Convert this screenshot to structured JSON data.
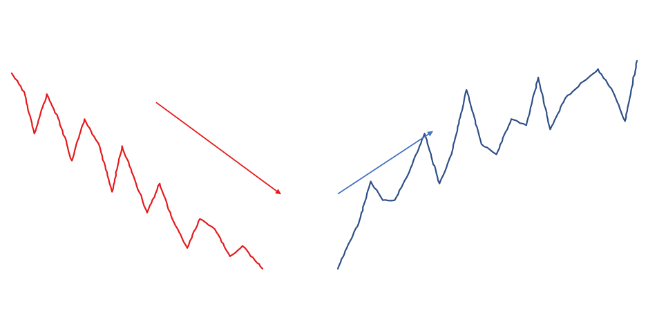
{
  "chart_data": [
    {
      "type": "line",
      "title": "",
      "xlabel": "",
      "ylabel": "",
      "grid": false,
      "legend": "none",
      "axes_visible": false,
      "xlim": [
        0,
        1
      ],
      "ylim": [
        0,
        1
      ],
      "series": [
        {
          "color": "#e41a1c",
          "x": [
            0.0,
            0.05,
            0.09,
            0.14,
            0.19,
            0.24,
            0.29,
            0.35,
            0.4,
            0.44,
            0.49,
            0.54,
            0.59,
            0.64,
            0.7,
            0.75,
            0.81,
            0.87,
            0.92,
            0.97,
            1.0
          ],
          "y": [
            0.94,
            0.85,
            0.65,
            0.84,
            0.71,
            0.52,
            0.72,
            0.59,
            0.37,
            0.59,
            0.43,
            0.27,
            0.41,
            0.24,
            0.1,
            0.24,
            0.19,
            0.06,
            0.11,
            0.04,
            0.0
          ]
        },
        {
          "color": "#e41a1c",
          "x": [
            0.0,
            1.0
          ],
          "y": [
            0.8,
            0.36
          ],
          "style": "arrow"
        }
      ]
    },
    {
      "type": "line",
      "title": "",
      "xlabel": "",
      "ylabel": "",
      "grid": false,
      "legend": "none",
      "axes_visible": false,
      "xlim": [
        0,
        1
      ],
      "ylim": [
        0,
        1
      ],
      "series": [
        {
          "color": "#2e4f86",
          "x": [
            0.0,
            0.03,
            0.07,
            0.11,
            0.15,
            0.19,
            0.24,
            0.29,
            0.34,
            0.38,
            0.43,
            0.48,
            0.53,
            0.58,
            0.63,
            0.67,
            0.71,
            0.76,
            0.82,
            0.87,
            0.92,
            0.96,
            1.0
          ],
          "y": [
            0.0,
            0.1,
            0.22,
            0.42,
            0.33,
            0.33,
            0.47,
            0.65,
            0.41,
            0.55,
            0.86,
            0.6,
            0.55,
            0.72,
            0.69,
            0.92,
            0.67,
            0.82,
            0.9,
            0.96,
            0.85,
            0.71,
            1.0
          ]
        },
        {
          "color": "#4472c4",
          "x": [
            0.0,
            1.0
          ],
          "y": [
            0.36,
            0.66
          ],
          "style": "arrow"
        }
      ]
    }
  ]
}
